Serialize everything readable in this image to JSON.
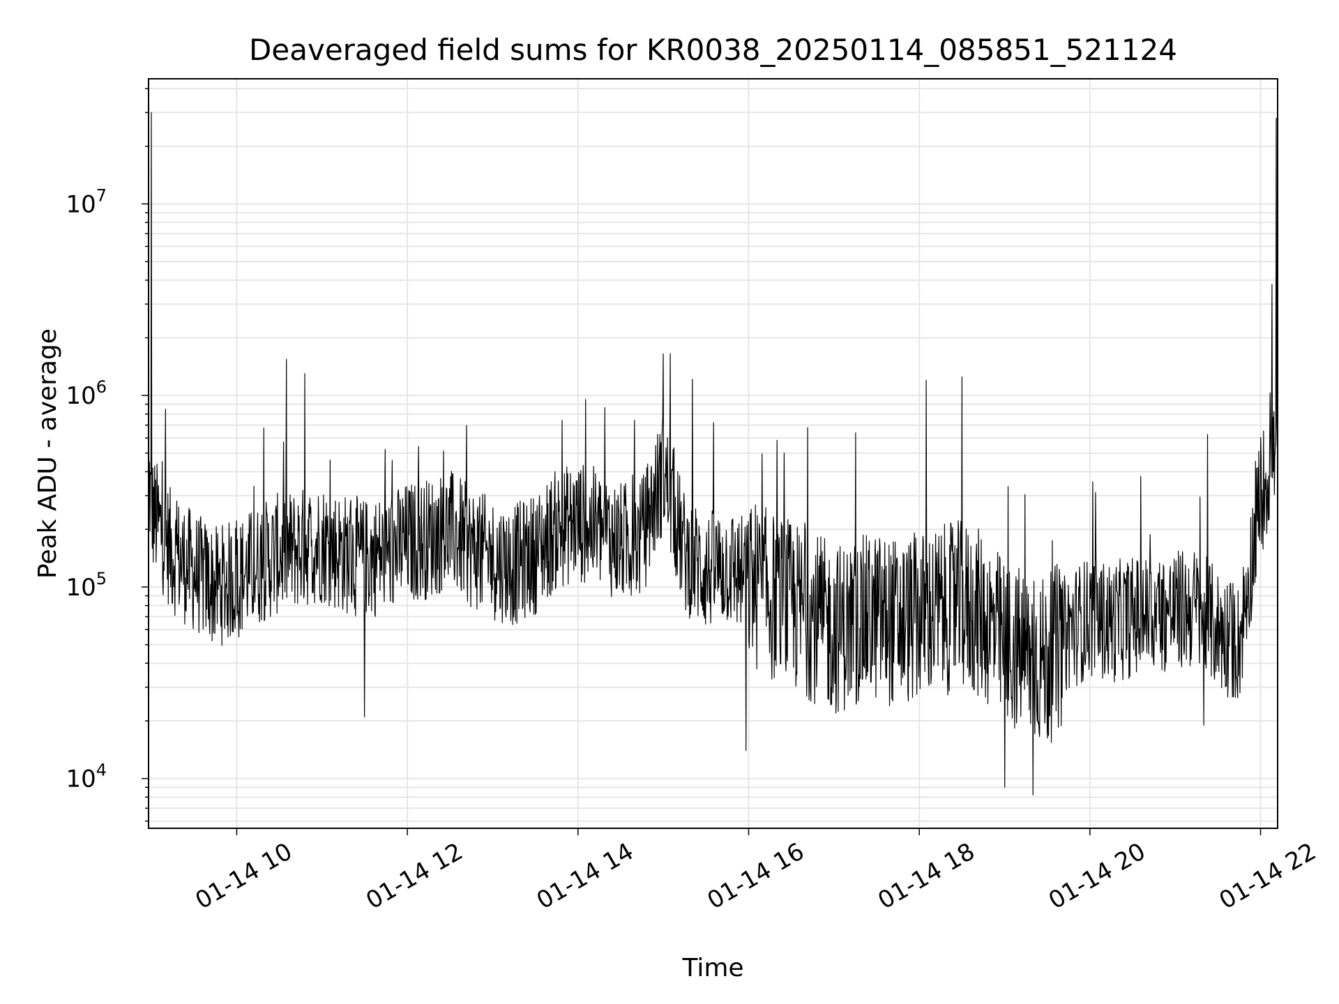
{
  "chart_data": {
    "type": "line",
    "title": "Deaveraged field sums for KR0038_20250114_085851_521124",
    "xlabel": "Time",
    "ylabel": "Peak ADU - average",
    "yscale": "log",
    "ylim": [
      5500,
      45000000
    ],
    "xlim": [
      "01-14 08:58",
      "01-14 22:12"
    ],
    "grid": true,
    "line_color": "#000000",
    "grid_color": "#e6e6e6",
    "x_ticks": [
      {
        "value": "01-14 10:00",
        "label": "01-14 10"
      },
      {
        "value": "01-14 12:00",
        "label": "01-14 12"
      },
      {
        "value": "01-14 14:00",
        "label": "01-14 14"
      },
      {
        "value": "01-14 16:00",
        "label": "01-14 16"
      },
      {
        "value": "01-14 18:00",
        "label": "01-14 18"
      },
      {
        "value": "01-14 20:00",
        "label": "01-14 20"
      },
      {
        "value": "01-14 22:00",
        "label": "01-14 22"
      }
    ],
    "y_ticks": [
      {
        "value": 10000,
        "base": "10",
        "exp": "4"
      },
      {
        "value": 100000,
        "base": "10",
        "exp": "5"
      },
      {
        "value": 1000000,
        "base": "10",
        "exp": "6"
      },
      {
        "value": 10000000,
        "base": "10",
        "exp": "7"
      }
    ],
    "series": [
      {
        "x": [
          "01-14 08:58",
          "01-14 09:00",
          "01-14 09:15",
          "01-14 09:30",
          "01-14 09:45",
          "01-14 10:00",
          "01-14 10:15",
          "01-14 10:30",
          "01-14 10:45",
          "01-14 11:00",
          "01-14 11:15",
          "01-14 11:30",
          "01-14 11:45",
          "01-14 12:00",
          "01-14 12:15",
          "01-14 12:30",
          "01-14 12:45",
          "01-14 13:00",
          "01-14 13:15",
          "01-14 13:30",
          "01-14 13:45",
          "01-14 14:00",
          "01-14 14:15",
          "01-14 14:30",
          "01-14 14:45",
          "01-14 15:00",
          "01-14 15:15",
          "01-14 15:30",
          "01-14 15:45",
          "01-14 16:00",
          "01-14 16:15",
          "01-14 16:30",
          "01-14 16:45",
          "01-14 17:00",
          "01-14 17:15",
          "01-14 17:30",
          "01-14 17:45",
          "01-14 18:00",
          "01-14 18:15",
          "01-14 18:30",
          "01-14 18:45",
          "01-14 19:00",
          "01-14 19:15",
          "01-14 19:30",
          "01-14 19:45",
          "01-14 20:00",
          "01-14 20:15",
          "01-14 20:30",
          "01-14 20:45",
          "01-14 21:00",
          "01-14 21:15",
          "01-14 21:30",
          "01-14 21:45",
          "01-14 22:00",
          "01-14 22:10"
        ],
        "y": [
          400000,
          250000,
          150000,
          120000,
          100000,
          110000,
          130000,
          150000,
          160000,
          170000,
          150000,
          140000,
          150000,
          170000,
          180000,
          200000,
          160000,
          140000,
          130000,
          150000,
          200000,
          220000,
          200000,
          170000,
          180000,
          400000,
          150000,
          120000,
          130000,
          110000,
          90000,
          80000,
          70000,
          60000,
          65000,
          70000,
          65000,
          70000,
          75000,
          80000,
          70000,
          50000,
          45000,
          40000,
          60000,
          70000,
          65000,
          70000,
          72000,
          75000,
          78000,
          60000,
          50000,
          300000,
          500000
        ]
      }
    ],
    "spikes": [
      {
        "x": "01-14 09:00",
        "y": 30000000
      },
      {
        "x": "01-14 10:48",
        "y": 1300000
      },
      {
        "x": "01-14 15:00",
        "y": 1650000
      },
      {
        "x": "01-14 15:05",
        "y": 1650000
      },
      {
        "x": "01-14 18:30",
        "y": 1250000
      },
      {
        "x": "01-14 18:05",
        "y": 1200000
      },
      {
        "x": "01-14 22:08",
        "y": 3800000
      },
      {
        "x": "01-14 22:11",
        "y": 28000000
      }
    ],
    "dips": [
      {
        "x": "01-14 11:30",
        "y": 21000
      },
      {
        "x": "01-14 15:58",
        "y": 14000
      },
      {
        "x": "01-14 19:00",
        "y": 9000
      },
      {
        "x": "01-14 19:20",
        "y": 8200
      },
      {
        "x": "01-14 21:20",
        "y": 19000
      }
    ]
  }
}
